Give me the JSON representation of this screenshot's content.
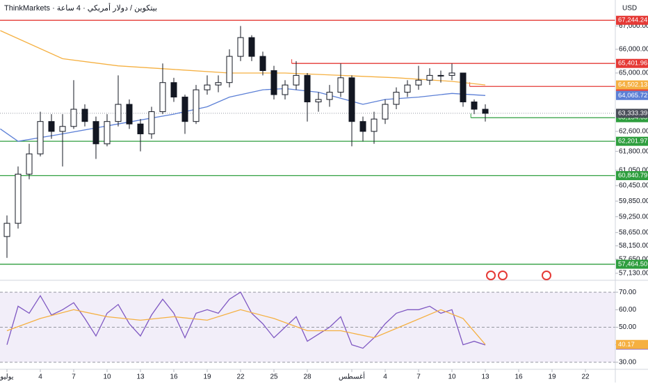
{
  "chart_data": {
    "type": "candlestick",
    "title": "ThinkMarkets · بيتكوين / دولار أمريكي · 4 ساعة",
    "currency": "USD",
    "log": true,
    "xlim": [
      -0.625,
      54.6875
    ],
    "ylim": [
      56950,
      68130
    ],
    "xticks": [
      {
        "value": 0,
        "label": "يوليو"
      },
      {
        "value": 3,
        "label": "4"
      },
      {
        "value": 6,
        "label": "7"
      },
      {
        "value": 9,
        "label": "10"
      },
      {
        "value": 12,
        "label": "13"
      },
      {
        "value": 15,
        "label": "16"
      },
      {
        "value": 18,
        "label": "19"
      },
      {
        "value": 21,
        "label": "22"
      },
      {
        "value": 24,
        "label": "25"
      },
      {
        "value": 27,
        "label": "28"
      },
      {
        "value": 31,
        "label": "أغسطس"
      },
      {
        "value": 34,
        "label": "4"
      },
      {
        "value": 37,
        "label": "7"
      },
      {
        "value": 40,
        "label": "10"
      },
      {
        "value": 43,
        "label": "13"
      },
      {
        "value": 46,
        "label": "16"
      },
      {
        "value": 49,
        "label": "19"
      },
      {
        "value": 52,
        "label": "22"
      }
    ],
    "yticks": [
      {
        "value": 67000,
        "label": "67,000.00"
      },
      {
        "value": 66000,
        "label": "66,000.00"
      },
      {
        "value": 65000,
        "label": "65,000.00"
      },
      {
        "value": 62600,
        "label": "62,600.00"
      },
      {
        "value": 61800,
        "label": "61,800.00"
      },
      {
        "value": 61050,
        "label": "61,050.00"
      },
      {
        "value": 60450,
        "label": "60,450.00"
      },
      {
        "value": 59850,
        "label": "59,850.00"
      },
      {
        "value": 59250,
        "label": "59,250.00"
      },
      {
        "value": 58650,
        "label": "58,650.00"
      },
      {
        "value": 58150,
        "label": "58,150.00"
      },
      {
        "value": 57650,
        "label": "57,650.00"
      },
      {
        "value": 57130,
        "label": "57,130.00"
      }
    ],
    "x": [
      0,
      1,
      2,
      3,
      4,
      5,
      6,
      7,
      8,
      9,
      10,
      11,
      12,
      13,
      14,
      15,
      16,
      17,
      18,
      19,
      20,
      21,
      22,
      23,
      24,
      25,
      26,
      27,
      28,
      29,
      30,
      31,
      32,
      33,
      34,
      35,
      36,
      37,
      38,
      39,
      40,
      41,
      42,
      43
    ],
    "open": [
      58500,
      59000,
      60900,
      61700,
      63000,
      62600,
      62800,
      63500,
      63000,
      62100,
      63000,
      63700,
      62900,
      62500,
      63400,
      64600,
      64000,
      63000,
      64300,
      64500,
      64600,
      65700,
      66500,
      65700,
      65100,
      64100,
      64500,
      64900,
      63800,
      63900,
      64200,
      64800,
      63000,
      62600,
      63100,
      63700,
      64200,
      64500,
      64700,
      64900,
      64900,
      65000,
      63800,
      63500
    ],
    "high": [
      59300,
      61200,
      62100,
      63400,
      63300,
      63300,
      64700,
      63700,
      63200,
      63300,
      64900,
      63900,
      63100,
      63600,
      65400,
      64800,
      64100,
      64500,
      64900,
      64900,
      66000,
      67000,
      66600,
      65900,
      65300,
      64700,
      65500,
      65000,
      64200,
      64500,
      65400,
      64900,
      63200,
      63400,
      63900,
      64400,
      64700,
      65300,
      65200,
      65100,
      65400,
      65000,
      63900,
      63700
    ],
    "low": [
      57700,
      58800,
      60700,
      61600,
      62300,
      61200,
      62700,
      62800,
      61500,
      62000,
      62800,
      62700,
      61800,
      62300,
      63300,
      63800,
      62500,
      62900,
      64100,
      64200,
      64400,
      65500,
      65500,
      64900,
      63900,
      63900,
      64300,
      63000,
      63400,
      63600,
      64000,
      62000,
      62200,
      62100,
      62900,
      63500,
      64000,
      64300,
      64500,
      64600,
      64700,
      63600,
      63300,
      63000
    ],
    "close": [
      59000,
      60900,
      61700,
      63000,
      62600,
      62800,
      63500,
      63000,
      62100,
      63000,
      63700,
      62900,
      62500,
      63400,
      64600,
      64000,
      63000,
      64300,
      64500,
      64600,
      65700,
      66500,
      65700,
      65100,
      64100,
      64500,
      64900,
      63800,
      63900,
      64200,
      64800,
      63000,
      62600,
      63100,
      63700,
      64200,
      64500,
      64700,
      64900,
      64900,
      65000,
      63800,
      63500,
      63333.39
    ],
    "last_price": {
      "value": 63333.39,
      "label": "63,333.39"
    },
    "series": [
      {
        "color": "#f5b041",
        "x": [
          -0.6,
          5,
          10,
          15,
          20,
          25,
          30,
          35,
          40,
          43
        ],
        "values": [
          66800,
          65600,
          65300,
          65150,
          65000,
          65000,
          64900,
          64800,
          64650,
          64502.13
        ],
        "tag": {
          "value": 64502.13,
          "label": "64,502.13"
        }
      },
      {
        "color": "#5b7fd6",
        "x": [
          -0.6,
          1,
          5,
          10,
          15,
          18,
          20,
          23,
          25,
          28,
          32,
          34,
          37,
          40,
          43
        ],
        "values": [
          62700,
          62200,
          62500,
          62900,
          63300,
          63600,
          64000,
          64300,
          64350,
          64200,
          63700,
          63900,
          64000,
          64150,
          64065.72
        ],
        "tag": {
          "value": 64065.72,
          "label": "64,065.72"
        }
      }
    ],
    "levels": [
      {
        "value": 67244.24,
        "label": "67,244.24",
        "color": "#e53935"
      },
      {
        "value": 65401.96,
        "label": "65,401.96",
        "color": "#e53935",
        "from": 25.6
      },
      {
        "value": 64439.83,
        "label": "64,439.83",
        "color": "#e53935",
        "from": 41.6
      },
      {
        "value": 63154.65,
        "label": "63,154.65",
        "color": "#2e9e3e",
        "from": 41.7
      },
      {
        "value": 62201.97,
        "label": "62,201.97",
        "color": "#2e9e3e"
      },
      {
        "value": 60840.79,
        "label": "60,840.79",
        "color": "#2e9e3e"
      },
      {
        "value": 57464.5,
        "label": "57,464.50",
        "color": "#2e9e3e"
      }
    ],
    "rsi": {
      "ylim": [
        23.6,
        76.8
      ],
      "yticks": [
        {
          "value": 70,
          "label": "70.00"
        },
        {
          "value": 60,
          "label": "60.00"
        },
        {
          "value": 50,
          "label": "50.00"
        },
        {
          "value": 40,
          "label": "40.00"
        },
        {
          "value": 30,
          "label": "30.00"
        }
      ],
      "band": [
        30,
        70
      ],
      "dashed": [
        70,
        50,
        30
      ],
      "series": [
        {
          "color": "#7e57c2",
          "x": [
            0,
            1,
            2,
            3,
            4,
            5,
            6,
            7,
            8,
            9,
            10,
            11,
            12,
            13,
            14,
            15,
            16,
            17,
            18,
            19,
            20,
            21,
            22,
            23,
            24,
            25,
            26,
            27,
            28,
            29,
            30,
            31,
            32,
            33,
            34,
            35,
            36,
            37,
            38,
            39,
            40,
            41,
            42,
            43
          ],
          "values": [
            40,
            62,
            58,
            68,
            57,
            60,
            64,
            55,
            45,
            58,
            63,
            52,
            45,
            57,
            66,
            58,
            44,
            58,
            60,
            58,
            66,
            70,
            58,
            52,
            44,
            50,
            56,
            42,
            46,
            50,
            56,
            40,
            38,
            44,
            52,
            58,
            60,
            60,
            62,
            58,
            60,
            40,
            42,
            39.86
          ],
          "tag": {
            "value": 39.86,
            "label": "39.86"
          }
        },
        {
          "color": "#f5b041",
          "x": [
            0,
            3,
            6,
            9,
            12,
            15,
            18,
            21,
            24,
            27,
            30,
            33,
            36,
            39,
            41,
            43
          ],
          "values": [
            48,
            55,
            60,
            56,
            54,
            56,
            54,
            60,
            55,
            48,
            48,
            44,
            52,
            60,
            55,
            40.17
          ],
          "tag": {
            "value": 40.17,
            "label": "40.17"
          }
        }
      ]
    }
  }
}
